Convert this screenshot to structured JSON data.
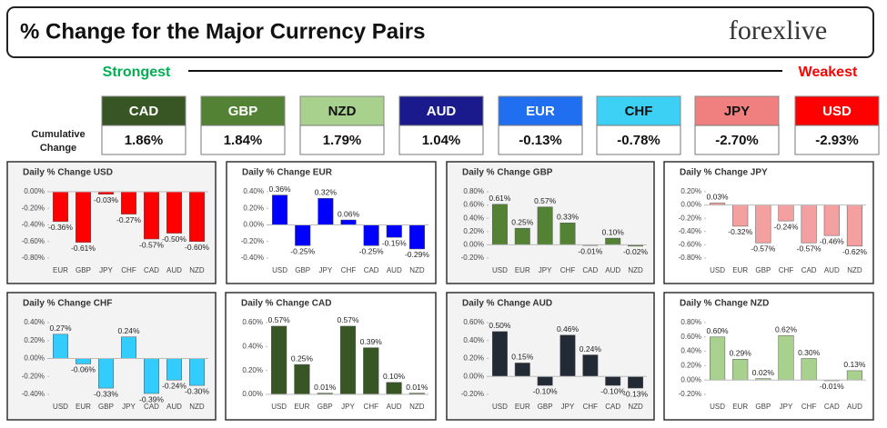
{
  "header": {
    "title": "% Change for the Major Currency Pairs",
    "logo": "forexlive"
  },
  "summary": {
    "strongest_label": "Strongest",
    "weakest_label": "Weakest",
    "row_label": "Cumulative Change",
    "currencies": [
      {
        "name": "CAD",
        "color": "#375623",
        "value": "1.86%"
      },
      {
        "name": "GBP",
        "color": "#548235",
        "value": "1.84%"
      },
      {
        "name": "NZD",
        "color": "#a9d18e",
        "value": "1.79%"
      },
      {
        "name": "AUD",
        "color": "#1a1a8c",
        "value": "1.04%"
      },
      {
        "name": "EUR",
        "color": "#1f6ff0",
        "value": "-0.13%"
      },
      {
        "name": "CHF",
        "color": "#3dd0f5",
        "value": "-0.78%"
      },
      {
        "name": "JPY",
        "color": "#f08080",
        "value": "-2.70%"
      },
      {
        "name": "USD",
        "color": "#ff0000",
        "value": "-2.93%"
      }
    ]
  },
  "chart_data": [
    {
      "type": "bar",
      "title": "Daily % Change USD",
      "color": "#ff0000",
      "categories": [
        "EUR",
        "GBP",
        "JPY",
        "CHF",
        "CAD",
        "AUD",
        "NZD"
      ],
      "values": [
        -0.36,
        -0.61,
        -0.03,
        -0.27,
        -0.57,
        -0.5,
        -0.6
      ],
      "value_labels": [
        "-0.36%",
        "-0.61%",
        "-0.03%",
        "-0.27%",
        "-0.57%",
        "-0.50%",
        "-0.60%"
      ],
      "ylim": [
        -0.8,
        0
      ],
      "yticks": [
        {
          "value": 0,
          "label": "0.00%"
        },
        {
          "value": -0.2,
          "label": "-0.20%"
        },
        {
          "value": -0.4,
          "label": "-0.40%"
        },
        {
          "value": -0.6,
          "label": "-0.60%"
        },
        {
          "value": -0.8,
          "label": "-0.80%"
        }
      ]
    },
    {
      "type": "bar",
      "title": "Daily % Change EUR",
      "color": "#0000ff",
      "categories": [
        "USD",
        "GBP",
        "JPY",
        "CHF",
        "CAD",
        "AUD",
        "NZD"
      ],
      "values": [
        0.36,
        -0.25,
        0.32,
        0.06,
        -0.25,
        -0.15,
        -0.29
      ],
      "value_labels": [
        "0.36%",
        "-0.25%",
        "0.32%",
        "0.06%",
        "-0.25%",
        "-0.15%",
        "-0.29%"
      ],
      "ylim": [
        -0.4,
        0.4
      ],
      "yticks": [
        {
          "value": 0.4,
          "label": "0.40%"
        },
        {
          "value": 0.2,
          "label": "0.20%"
        },
        {
          "value": 0,
          "label": "0.00%"
        },
        {
          "value": -0.2,
          "label": "-0.20%"
        },
        {
          "value": -0.4,
          "label": "-0.40%"
        }
      ]
    },
    {
      "type": "bar",
      "title": "Daily % Change GBP",
      "color": "#548235",
      "categories": [
        "USD",
        "EUR",
        "JPY",
        "CHF",
        "CAD",
        "AUD",
        "NZD"
      ],
      "values": [
        0.61,
        0.25,
        0.57,
        0.33,
        -0.01,
        0.1,
        -0.02
      ],
      "value_labels": [
        "0.61%",
        "0.25%",
        "0.57%",
        "0.33%",
        "-0.01%",
        "0.10%",
        "-0.02%"
      ],
      "ylim": [
        -0.2,
        0.8
      ],
      "yticks": [
        {
          "value": 0.8,
          "label": "0.80%"
        },
        {
          "value": 0.6,
          "label": "0.60%"
        },
        {
          "value": 0.4,
          "label": "0.40%"
        },
        {
          "value": 0.2,
          "label": "0.20%"
        },
        {
          "value": 0,
          "label": "0.00%"
        },
        {
          "value": -0.2,
          "label": "-0.20%"
        }
      ]
    },
    {
      "type": "bar",
      "title": "Daily % Change JPY",
      "color": "#f4a0a0",
      "categories": [
        "USD",
        "EUR",
        "GBP",
        "CHF",
        "CAD",
        "AUD",
        "NZD"
      ],
      "values": [
        0.03,
        -0.32,
        -0.57,
        -0.24,
        -0.57,
        -0.46,
        -0.62
      ],
      "value_labels": [
        "0.03%",
        "-0.32%",
        "-0.57%",
        "-0.24%",
        "-0.57%",
        "-0.46%",
        "-0.62%"
      ],
      "ylim": [
        -0.8,
        0.2
      ],
      "yticks": [
        {
          "value": 0.2,
          "label": "0.20%"
        },
        {
          "value": 0,
          "label": "0.00%"
        },
        {
          "value": -0.2,
          "label": "-0.20%"
        },
        {
          "value": -0.4,
          "label": "-0.40%"
        },
        {
          "value": -0.6,
          "label": "-0.60%"
        },
        {
          "value": -0.8,
          "label": "-0.80%"
        }
      ]
    },
    {
      "type": "bar",
      "title": "Daily % Change CHF",
      "color": "#33ccff",
      "categories": [
        "USD",
        "EUR",
        "GBP",
        "JPY",
        "CAD",
        "AUD",
        "NZD"
      ],
      "values": [
        0.27,
        -0.06,
        -0.33,
        0.24,
        -0.39,
        -0.24,
        -0.3
      ],
      "value_labels": [
        "0.27%",
        "-0.06%",
        "-0.33%",
        "0.24%",
        "-0.39%",
        "-0.24%",
        "-0.30%"
      ],
      "ylim": [
        -0.4,
        0.4
      ],
      "yticks": [
        {
          "value": 0.4,
          "label": "0.40%"
        },
        {
          "value": 0.2,
          "label": "0.20%"
        },
        {
          "value": 0,
          "label": "0.00%"
        },
        {
          "value": -0.2,
          "label": "-0.20%"
        },
        {
          "value": -0.4,
          "label": "-0.40%"
        }
      ]
    },
    {
      "type": "bar",
      "title": "Daily % Change CAD",
      "color": "#375623",
      "categories": [
        "USD",
        "EUR",
        "GBP",
        "JPY",
        "CHF",
        "AUD",
        "NZD"
      ],
      "values": [
        0.57,
        0.25,
        0.01,
        0.57,
        0.39,
        0.1,
        0.01
      ],
      "value_labels": [
        "0.57%",
        "0.25%",
        "0.01%",
        "0.57%",
        "0.39%",
        "0.10%",
        "0.01%"
      ],
      "ylim": [
        0,
        0.6
      ],
      "yticks": [
        {
          "value": 0.6,
          "label": "0.60%"
        },
        {
          "value": 0.4,
          "label": "0.40%"
        },
        {
          "value": 0.2,
          "label": "0.20%"
        },
        {
          "value": 0,
          "label": "0.00%"
        }
      ]
    },
    {
      "type": "bar",
      "title": "Daily % Change AUD",
      "color": "#222a35",
      "categories": [
        "USD",
        "EUR",
        "GBP",
        "JPY",
        "CHF",
        "CAD",
        "NZD"
      ],
      "values": [
        0.5,
        0.15,
        -0.1,
        0.46,
        0.24,
        -0.1,
        -0.13
      ],
      "value_labels": [
        "0.50%",
        "0.15%",
        "-0.10%",
        "0.46%",
        "0.24%",
        "-0.10%",
        "-0.13%"
      ],
      "ylim": [
        -0.2,
        0.6
      ],
      "yticks": [
        {
          "value": 0.6,
          "label": "0.60%"
        },
        {
          "value": 0.4,
          "label": "0.40%"
        },
        {
          "value": 0.2,
          "label": "0.20%"
        },
        {
          "value": 0,
          "label": "0.00%"
        },
        {
          "value": -0.2,
          "label": "-0.20%"
        }
      ]
    },
    {
      "type": "bar",
      "title": "Daily % Change NZD",
      "color": "#a9d18e",
      "categories": [
        "USD",
        "EUR",
        "GBP",
        "JPY",
        "CHF",
        "CAD",
        "AUD"
      ],
      "values": [
        0.6,
        0.29,
        0.02,
        0.62,
        0.3,
        -0.01,
        0.13
      ],
      "value_labels": [
        "0.60%",
        "0.29%",
        "0.02%",
        "0.62%",
        "0.30%",
        "-0.01%",
        "0.13%"
      ],
      "ylim": [
        -0.2,
        0.8
      ],
      "yticks": [
        {
          "value": 0.8,
          "label": "0.80%"
        },
        {
          "value": 0.6,
          "label": "0.60%"
        },
        {
          "value": 0.4,
          "label": "0.40%"
        },
        {
          "value": 0.2,
          "label": "0.20%"
        },
        {
          "value": 0,
          "label": "0.00%"
        },
        {
          "value": -0.2,
          "label": "-0.20%"
        }
      ]
    }
  ]
}
